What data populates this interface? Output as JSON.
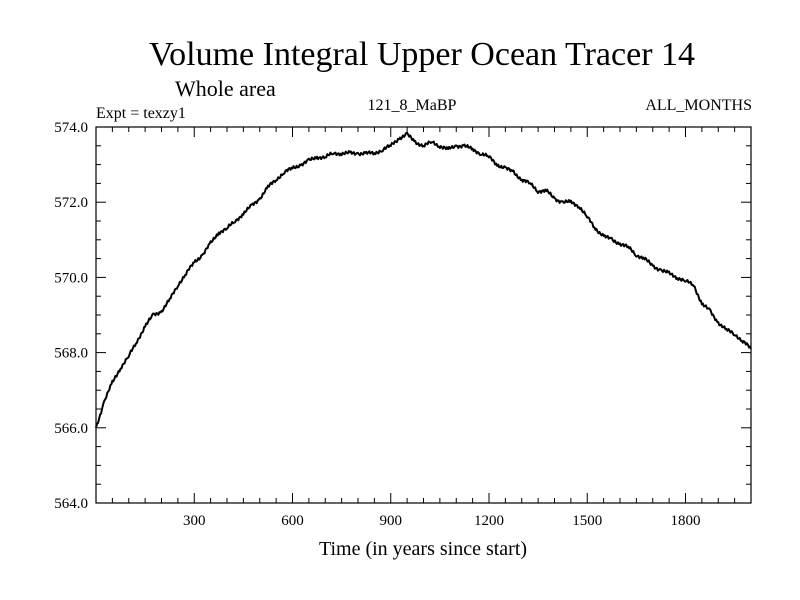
{
  "chart_data": {
    "type": "line",
    "title": "Volume Integral Upper Ocean Tracer 14",
    "subtitle": "Whole area",
    "expt_label": "Expt = texzy1",
    "run_label": "121_8_MaBP",
    "months_label": "ALL_MONTHS",
    "xlabel": "Time (in years since start)",
    "ylabel": "",
    "xlim": [
      0,
      2000
    ],
    "ylim": [
      564,
      574
    ],
    "x_ticks": [
      300,
      600,
      900,
      1200,
      1500,
      1800
    ],
    "x_tick_labels": [
      "300",
      "600",
      "900",
      "1200",
      "1500",
      "1800"
    ],
    "y_ticks": [
      564,
      566,
      568,
      570,
      572,
      574
    ],
    "y_tick_labels": [
      "564.0",
      "566.0",
      "568.0",
      "570.0",
      "572.0",
      "574.0"
    ],
    "line_color": "#000000",
    "series": [
      {
        "name": "Tracer 14",
        "x": [
          0,
          25,
          50,
          75,
          100,
          125,
          150,
          175,
          200,
          225,
          250,
          275,
          300,
          325,
          350,
          375,
          400,
          425,
          450,
          475,
          500,
          525,
          550,
          575,
          600,
          625,
          650,
          675,
          700,
          725,
          750,
          775,
          800,
          825,
          850,
          875,
          900,
          925,
          950,
          975,
          1000,
          1025,
          1050,
          1075,
          1100,
          1125,
          1150,
          1175,
          1200,
          1225,
          1250,
          1275,
          1300,
          1325,
          1350,
          1375,
          1400,
          1425,
          1450,
          1475,
          1500,
          1525,
          1550,
          1575,
          1600,
          1625,
          1650,
          1675,
          1700,
          1725,
          1750,
          1775,
          1800,
          1825,
          1850,
          1875,
          1900,
          1925,
          1950,
          1975,
          2000
        ],
        "values": [
          566.0,
          566.7,
          567.2,
          567.6,
          567.9,
          568.3,
          568.7,
          569.0,
          569.1,
          569.4,
          569.8,
          570.1,
          570.4,
          570.6,
          570.9,
          571.2,
          571.3,
          571.5,
          571.7,
          571.9,
          572.1,
          572.4,
          572.6,
          572.8,
          572.9,
          573.0,
          573.1,
          573.2,
          573.2,
          573.3,
          573.3,
          573.3,
          573.3,
          573.3,
          573.3,
          573.4,
          573.5,
          573.7,
          573.8,
          573.6,
          573.5,
          573.6,
          573.5,
          573.4,
          573.5,
          573.5,
          573.4,
          573.3,
          573.2,
          573.0,
          572.9,
          572.8,
          572.6,
          572.5,
          572.3,
          572.3,
          572.1,
          572.0,
          572.0,
          571.9,
          571.6,
          571.3,
          571.1,
          571.0,
          570.9,
          570.8,
          570.6,
          570.5,
          570.3,
          570.2,
          570.1,
          570.0,
          569.9,
          569.8,
          569.3,
          569.1,
          568.8,
          568.6,
          568.5,
          568.3,
          568.1
        ]
      }
    ]
  }
}
